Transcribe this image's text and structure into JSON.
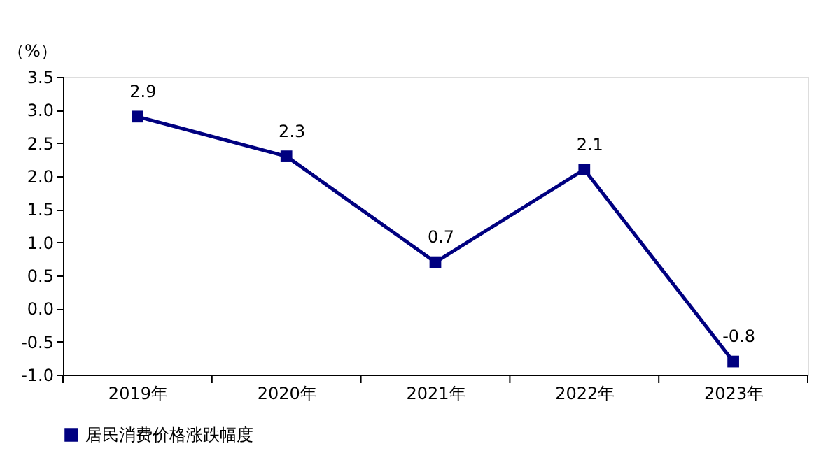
{
  "chart_data": {
    "type": "line",
    "ylabel": "（%）",
    "categories": [
      "2019年",
      "2020年",
      "2021年",
      "2022年",
      "2023年"
    ],
    "series": [
      {
        "name": "居民消费价格涨跌幅度",
        "color": "#000080",
        "values": [
          2.9,
          2.3,
          0.7,
          2.1,
          -0.8
        ]
      }
    ],
    "ylim": [
      -1.0,
      3.5
    ],
    "yticks": [
      {
        "value": -1.0,
        "label": "-1.0"
      },
      -0.5,
      {
        "value": 0,
        "label": "0.0"
      },
      0.5,
      {
        "value": 1.0,
        "label": "1.0"
      },
      1.5,
      {
        "value": 2.0,
        "label": "2.0"
      },
      2.5,
      {
        "value": 3.0,
        "label": "3.0"
      },
      3.5
    ],
    "data_labels": true,
    "marker": "square",
    "line_style": "solid",
    "grid": false,
    "legend": "bottom"
  }
}
